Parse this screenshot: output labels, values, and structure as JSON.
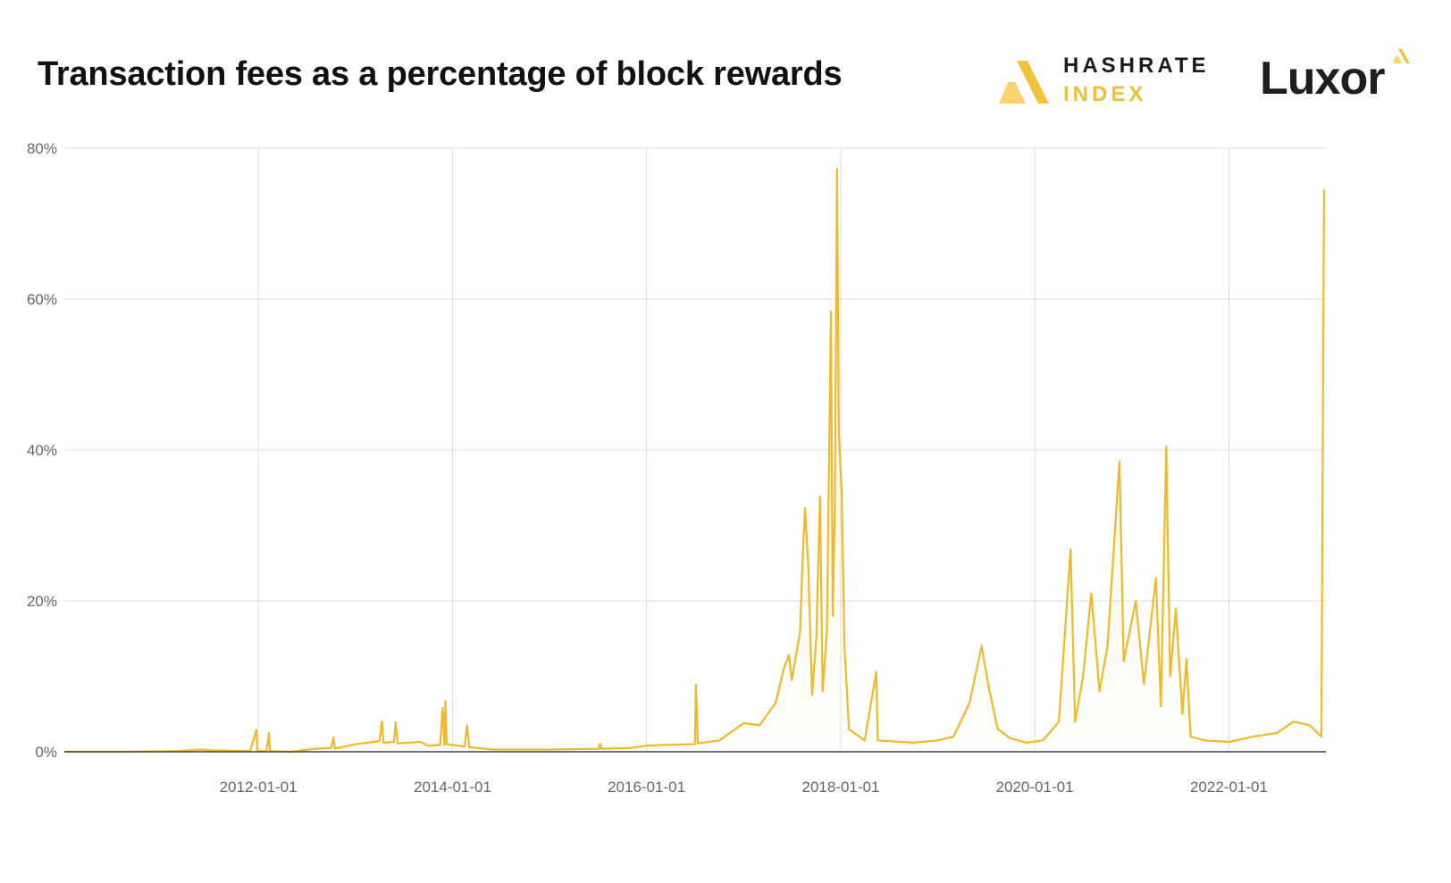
{
  "title": "Transaction fees as a percentage of block rewards",
  "brands": {
    "hashrate_index_line1": "HASHRATE",
    "hashrate_index_line2": "INDEX",
    "luxor": "Luxor"
  },
  "colors": {
    "line": "#f0b929",
    "fill": "#f5d77a",
    "grid": "#dddddd",
    "axis": "#444444",
    "title": "#111111"
  },
  "chart_data": {
    "type": "line",
    "title": "Transaction fees as a percentage of block rewards",
    "xlabel": "",
    "ylabel": "",
    "xlim": [
      "2010-01-01",
      "2023-01-01"
    ],
    "ylim": [
      0,
      80
    ],
    "y_ticks": [
      "0%",
      "20%",
      "40%",
      "60%",
      "80%"
    ],
    "x_ticks": [
      "2012-01-01",
      "2014-01-01",
      "2016-01-01",
      "2018-01-01",
      "2020-01-01",
      "2022-01-01"
    ],
    "grid": true,
    "legend": "none",
    "series": [
      {
        "values_unit": "%",
        "points": [
          [
            "2010-01-01",
            0.0
          ],
          [
            "2010-09-01",
            0.0
          ],
          [
            "2011-03-01",
            0.1
          ],
          [
            "2011-06-01",
            0.3
          ],
          [
            "2011-07-01",
            0.2
          ],
          [
            "2011-12-01",
            0.1
          ],
          [
            "2011-12-25",
            2.9
          ],
          [
            "2011-12-28",
            0.1
          ],
          [
            "2012-02-01",
            0.1
          ],
          [
            "2012-02-10",
            2.5
          ],
          [
            "2012-02-14",
            0.1
          ],
          [
            "2012-05-01",
            0.0
          ],
          [
            "2012-08-01",
            0.4
          ],
          [
            "2012-10-01",
            0.5
          ],
          [
            "2012-10-10",
            1.9
          ],
          [
            "2012-10-15",
            0.4
          ],
          [
            "2013-01-01",
            1.0
          ],
          [
            "2013-04-01",
            1.4
          ],
          [
            "2013-04-10",
            4.0
          ],
          [
            "2013-04-16",
            1.2
          ],
          [
            "2013-05-25",
            1.3
          ],
          [
            "2013-06-01",
            3.9
          ],
          [
            "2013-06-08",
            1.1
          ],
          [
            "2013-09-01",
            1.3
          ],
          [
            "2013-10-01",
            0.8
          ],
          [
            "2013-11-15",
            0.9
          ],
          [
            "2013-11-25",
            5.8
          ],
          [
            "2013-12-01",
            0.9
          ],
          [
            "2013-12-05",
            6.7
          ],
          [
            "2013-12-10",
            1.0
          ],
          [
            "2014-02-15",
            0.7
          ],
          [
            "2014-02-25",
            3.5
          ],
          [
            "2014-03-05",
            0.6
          ],
          [
            "2014-06-01",
            0.3
          ],
          [
            "2014-12-01",
            0.3
          ],
          [
            "2015-01-01",
            0.3
          ],
          [
            "2015-07-05",
            0.4
          ],
          [
            "2015-07-10",
            1.1
          ],
          [
            "2015-07-15",
            0.4
          ],
          [
            "2015-11-01",
            0.5
          ],
          [
            "2016-01-01",
            0.8
          ],
          [
            "2016-03-01",
            0.9
          ],
          [
            "2016-07-01",
            1.0
          ],
          [
            "2016-07-05",
            8.9
          ],
          [
            "2016-07-12",
            1.1
          ],
          [
            "2016-10-01",
            1.5
          ],
          [
            "2017-01-01",
            3.8
          ],
          [
            "2017-03-01",
            3.5
          ],
          [
            "2017-05-01",
            6.5
          ],
          [
            "2017-06-01",
            11.0
          ],
          [
            "2017-06-20",
            12.8
          ],
          [
            "2017-07-01",
            9.5
          ],
          [
            "2017-08-01",
            16.0
          ],
          [
            "2017-08-10",
            25.0
          ],
          [
            "2017-08-20",
            32.3
          ],
          [
            "2017-09-01",
            24.5
          ],
          [
            "2017-09-15",
            7.5
          ],
          [
            "2017-10-01",
            15.0
          ],
          [
            "2017-10-15",
            33.8
          ],
          [
            "2017-10-25",
            8.0
          ],
          [
            "2017-11-10",
            16.0
          ],
          [
            "2017-11-25",
            58.4
          ],
          [
            "2017-12-02",
            18.0
          ],
          [
            "2017-12-10",
            33.0
          ],
          [
            "2017-12-18",
            77.3
          ],
          [
            "2017-12-25",
            42.0
          ],
          [
            "2018-01-05",
            34.0
          ],
          [
            "2018-01-15",
            14.0
          ],
          [
            "2018-02-01",
            3.0
          ],
          [
            "2018-04-01",
            1.5
          ],
          [
            "2018-05-15",
            10.6
          ],
          [
            "2018-05-20",
            1.5
          ],
          [
            "2018-10-01",
            1.2
          ],
          [
            "2019-01-01",
            1.5
          ],
          [
            "2019-03-01",
            2.0
          ],
          [
            "2019-05-01",
            6.5
          ],
          [
            "2019-06-15",
            14.0
          ],
          [
            "2019-07-15",
            8.0
          ],
          [
            "2019-08-15",
            3.0
          ],
          [
            "2019-10-01",
            1.8
          ],
          [
            "2019-12-01",
            1.2
          ],
          [
            "2020-02-01",
            1.5
          ],
          [
            "2020-04-01",
            4.0
          ],
          [
            "2020-05-15",
            26.8
          ],
          [
            "2020-06-01",
            4.0
          ],
          [
            "2020-07-01",
            10.0
          ],
          [
            "2020-08-01",
            21.0
          ],
          [
            "2020-09-01",
            8.0
          ],
          [
            "2020-10-01",
            14.0
          ],
          [
            "2020-11-15",
            38.5
          ],
          [
            "2020-12-01",
            12.0
          ],
          [
            "2021-01-15",
            20.0
          ],
          [
            "2021-02-15",
            9.0
          ],
          [
            "2021-04-01",
            23.0
          ],
          [
            "2021-04-20",
            6.0
          ],
          [
            "2021-05-10",
            40.5
          ],
          [
            "2021-05-25",
            10.0
          ],
          [
            "2021-06-15",
            19.0
          ],
          [
            "2021-07-10",
            5.0
          ],
          [
            "2021-07-25",
            12.3
          ],
          [
            "2021-08-10",
            2.0
          ],
          [
            "2021-10-01",
            1.5
          ],
          [
            "2022-01-01",
            1.3
          ],
          [
            "2022-04-01",
            2.0
          ],
          [
            "2022-07-01",
            2.5
          ],
          [
            "2022-09-01",
            4.0
          ],
          [
            "2022-11-01",
            3.5
          ],
          [
            "2022-12-15",
            2.0
          ],
          [
            "2022-12-25",
            74.5
          ]
        ]
      }
    ]
  }
}
